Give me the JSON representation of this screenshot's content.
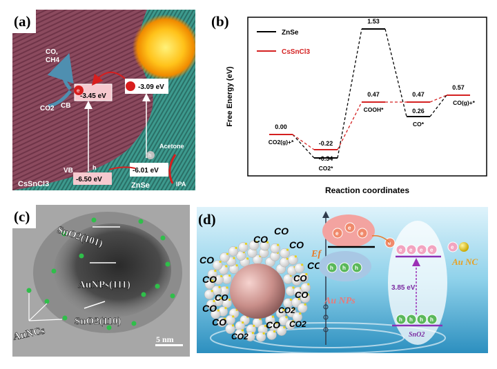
{
  "panel_a": {
    "label": "(a)",
    "co_ch4_top": "CO,",
    "co_ch4_bottom": "CH4",
    "co2": "CO2",
    "cb": "CB",
    "vb": "VB",
    "e_label": "e",
    "h_label": "h",
    "cb_left": "-3.45 eV",
    "cb_right": "-3.09 eV",
    "vb_right": "-6.01 eV",
    "vb_left": "-6.50 eV",
    "acetone": "Acetone",
    "ipa": "IPA",
    "material_left": "CsSnCl3",
    "material_right": "ZnSe"
  },
  "panel_b": {
    "label": "(b)",
    "xlabel": "Reaction coordinates",
    "ylabel": "Free Energy (eV)",
    "legend": [
      "ZnSe",
      "CsSnCl3"
    ],
    "series_colors": [
      "#000000",
      "#d42020"
    ],
    "values_zn": [
      "0.00",
      "-0.34",
      "1.53",
      "0.26",
      "0.57"
    ],
    "values_cs": [
      "0.00",
      "-0.22",
      "0.47",
      "0.47",
      "0.57"
    ],
    "species": [
      "CO2(g)+*",
      "CO2*",
      "COOH*",
      "CO*",
      "CO(g)+*"
    ]
  },
  "chart_data": {
    "type": "line",
    "title": "",
    "xlabel": "Reaction coordinates",
    "ylabel": "Free Energy (eV)",
    "categories": [
      "CO2(g)+*",
      "CO2*",
      "COOH*",
      "CO*",
      "CO(g)+*"
    ],
    "series": [
      {
        "name": "ZnSe",
        "values": [
          0.0,
          -0.34,
          1.53,
          0.26,
          0.57
        ]
      },
      {
        "name": "CsSnCl3",
        "values": [
          0.0,
          -0.22,
          0.47,
          0.47,
          0.57
        ]
      }
    ],
    "ylim": [
      -0.6,
      1.7
    ]
  },
  "panel_c": {
    "label": "(c)",
    "sno2_101": "SnO2(101)",
    "aunps": "AuNPs(111)",
    "sno2_110": "SnO2(110)",
    "auncs": "AuNCs",
    "scale": "5 nm"
  },
  "panel_d": {
    "label": "(d)",
    "co": "CO",
    "co2": "CO2",
    "ef": "Ef",
    "au_nps": "Au NPs",
    "gap": "3.85 eV",
    "sno2": "SnO2",
    "au_nc": "Au NC",
    "e": "e",
    "h": "h"
  }
}
